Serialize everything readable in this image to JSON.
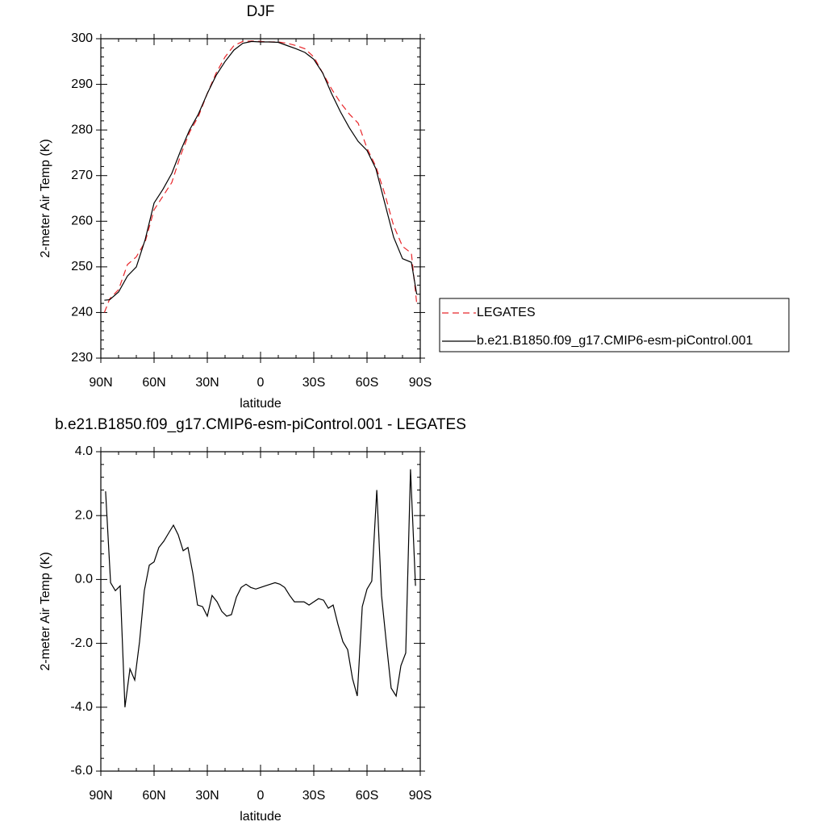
{
  "chart_data": [
    {
      "type": "line",
      "title": "DJF",
      "xlabel": "latitude",
      "ylabel": "2-meter Air Temp (K)",
      "x": [
        88,
        85,
        80,
        75,
        70,
        65,
        60,
        55,
        50,
        45,
        40,
        35,
        30,
        25,
        20,
        15,
        10,
        5,
        0,
        -5,
        -10,
        -15,
        -20,
        -25,
        -30,
        -35,
        -40,
        -45,
        -50,
        -55,
        -60,
        -65,
        -70,
        -75,
        -80,
        -85,
        -88
      ],
      "series": [
        {
          "name": "LEGATES",
          "color": "#e8262a",
          "dash": true,
          "values": [
            240,
            243,
            245,
            250.5,
            252.2,
            255.5,
            262.5,
            265.5,
            268.5,
            274.5,
            279.5,
            283,
            288,
            292.5,
            296,
            298.5,
            299.4,
            299.5,
            299.4,
            299.3,
            299.3,
            299,
            298.5,
            297.8,
            296,
            292.5,
            289,
            286,
            283.5,
            281.5,
            276,
            272,
            266,
            259,
            254.5,
            253,
            242
          ]
        },
        {
          "name": "b.e21.B1850.f09_g17.CMIP6-esm-piControl.001",
          "color": "#000000",
          "dash": false,
          "values": [
            242.7,
            242.8,
            244.5,
            248,
            250,
            256,
            264,
            267,
            270.5,
            275.5,
            280,
            283.5,
            288,
            292,
            295,
            297.5,
            299,
            299.4,
            299.3,
            299.3,
            299.2,
            298.5,
            297.8,
            297,
            295.5,
            292.5,
            288,
            284,
            280.5,
            277.5,
            275.5,
            271.5,
            264,
            256.5,
            251.8,
            251,
            244
          ]
        }
      ],
      "xlim": [
        90,
        -90
      ],
      "xticks": [
        {
          "value": 90,
          "label": "90N"
        },
        {
          "value": 60,
          "label": "60N"
        },
        {
          "value": 30,
          "label": "30N"
        },
        0,
        {
          "value": -30,
          "label": "30S"
        },
        {
          "value": -60,
          "label": "60S"
        },
        {
          "value": -90,
          "label": "90S"
        }
      ],
      "ylim": [
        230,
        300
      ],
      "yticks": [
        230,
        240,
        250,
        260,
        270,
        280,
        290,
        300
      ],
      "legend": "right"
    },
    {
      "type": "line",
      "title": "b.e21.B1850.f09_g17.CMIP6-esm-piControl.001 - LEGATES",
      "xlabel": "latitude",
      "ylabel": "2-meter Air Temp (K)",
      "x": [
        87.3,
        84.5,
        81.8,
        79.1,
        76.4,
        73.6,
        70.9,
        68.2,
        65.5,
        62.7,
        60.0,
        57.3,
        54.5,
        51.8,
        49.1,
        46.4,
        43.6,
        40.9,
        38.2,
        35.5,
        32.7,
        30.0,
        27.3,
        24.5,
        21.8,
        19.1,
        16.4,
        13.6,
        10.9,
        8.2,
        5.5,
        2.7,
        0.0,
        -2.7,
        -5.5,
        -8.2,
        -10.9,
        -13.6,
        -16.4,
        -19.1,
        -21.8,
        -24.5,
        -27.3,
        -30.0,
        -32.7,
        -35.5,
        -38.2,
        -40.9,
        -43.6,
        -46.4,
        -49.1,
        -51.8,
        -54.5,
        -57.3,
        -60.0,
        -62.7,
        -65.5,
        -68.2,
        -70.9,
        -73.6,
        -76.4,
        -79.1,
        -81.8,
        -84.5,
        -87.3
      ],
      "series": [
        {
          "color": "#000000",
          "dash": false,
          "values": [
            2.76,
            -0.1,
            -0.35,
            -0.2,
            -4.0,
            -2.8,
            -3.15,
            -1.95,
            -0.35,
            0.45,
            0.55,
            1.0,
            1.2,
            1.45,
            1.7,
            1.4,
            0.9,
            1.0,
            0.2,
            -0.8,
            -0.85,
            -1.15,
            -0.5,
            -0.7,
            -1.0,
            -1.15,
            -1.1,
            -0.55,
            -0.25,
            -0.15,
            -0.25,
            -0.3,
            -0.25,
            -0.2,
            -0.15,
            -0.1,
            -0.15,
            -0.25,
            -0.5,
            -0.7,
            -0.7,
            -0.7,
            -0.8,
            -0.7,
            -0.6,
            -0.65,
            -0.9,
            -0.8,
            -1.4,
            -1.95,
            -2.2,
            -3.1,
            -3.65,
            -0.85,
            -0.3,
            -0.05,
            2.8,
            -0.5,
            -2.0,
            -3.4,
            -3.65,
            -2.7,
            -2.3,
            3.45,
            -0.2
          ]
        }
      ],
      "xlim": [
        90,
        -90
      ],
      "xticks": [
        {
          "value": 90,
          "label": "90N"
        },
        {
          "value": 60,
          "label": "60N"
        },
        {
          "value": 30,
          "label": "30N"
        },
        0,
        {
          "value": -30,
          "label": "30S"
        },
        {
          "value": -60,
          "label": "60S"
        },
        {
          "value": -90,
          "label": "90S"
        }
      ],
      "ylim": [
        -6,
        4
      ],
      "yticks": [
        {
          "value": -6,
          "label": "-6.0"
        },
        {
          "value": -4,
          "label": "-4.0"
        },
        {
          "value": -2,
          "label": "-2.0"
        },
        {
          "value": 0,
          "label": "0.0"
        },
        {
          "value": 2,
          "label": "2.0"
        },
        {
          "value": 4,
          "label": "4.0"
        }
      ]
    }
  ]
}
